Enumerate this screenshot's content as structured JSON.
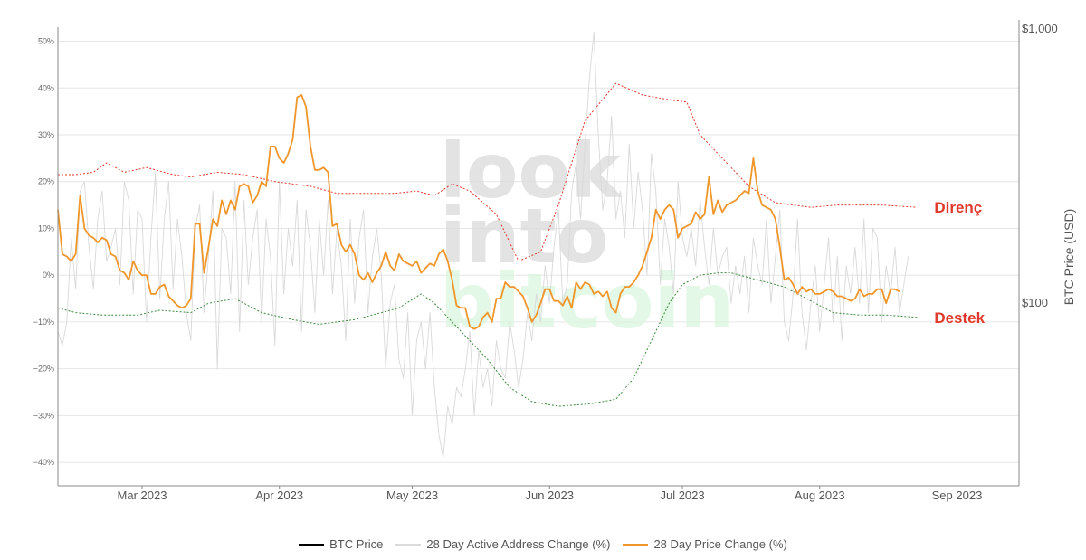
{
  "chart_data": {
    "type": "line",
    "title": "",
    "watermark": [
      "look",
      "into",
      "bitcoin"
    ],
    "x_axis": {
      "range": [
        "2023-02-10",
        "2023-09-15"
      ],
      "ticks": [
        {
          "date": "2023-03-01",
          "label": "Mar 2023"
        },
        {
          "date": "2023-04-01",
          "label": "Apr 2023"
        },
        {
          "date": "2023-05-01",
          "label": "May 2023"
        },
        {
          "date": "2023-06-01",
          "label": "Jun 2023"
        },
        {
          "date": "2023-07-01",
          "label": "Jul 2023"
        },
        {
          "date": "2023-08-01",
          "label": "Aug 2023"
        },
        {
          "date": "2023-09-01",
          "label": "Sep 2023"
        }
      ]
    },
    "y_left": {
      "range": [
        -45,
        53
      ],
      "ticks": [
        {
          "value": 50,
          "label": "50%"
        },
        {
          "value": 40,
          "label": "40%"
        },
        {
          "value": 30,
          "label": "30%"
        },
        {
          "value": 20,
          "label": "20%"
        },
        {
          "value": 10,
          "label": "10%"
        },
        {
          "value": 0,
          "label": "0%"
        },
        {
          "value": -10,
          "label": "−10%"
        },
        {
          "value": -20,
          "label": "−20%"
        },
        {
          "value": -30,
          "label": "−30%"
        },
        {
          "value": -40,
          "label": "−40%"
        }
      ],
      "grid": true
    },
    "y_right": {
      "scale": "log",
      "ylabel": "BTC Price (USD)",
      "ticks": [
        {
          "value": 1000,
          "label": "$1,000"
        },
        {
          "value": 100,
          "label": "$100"
        }
      ]
    },
    "legend": {
      "placement": "bottom-center",
      "entries": [
        {
          "name": "BTC Price",
          "color": "#000000"
        },
        {
          "name": "28 Day Active Address Change (%)",
          "color": "#dcdcdc"
        },
        {
          "name": "28 Day Price Change (%)",
          "color": "#f0962a"
        }
      ]
    },
    "annotations": [
      {
        "text": "Direnç",
        "color": "#e0392b",
        "anchor": {
          "date": "2023-08-24",
          "value": 14.5
        }
      },
      {
        "text": "Destek",
        "color": "#e0392b",
        "anchor": {
          "date": "2023-08-24",
          "value": -9
        }
      }
    ],
    "series": [
      {
        "name": "28 Day Price Change (%)",
        "color": "#f0962a",
        "style": "solid",
        "x_start": "2023-02-10",
        "step_days": 1,
        "values": [
          14,
          4.5,
          4,
          3,
          4.5,
          17,
          10,
          8.5,
          8,
          7,
          8,
          7.5,
          4.5,
          4,
          1,
          0.5,
          -1,
          3,
          1,
          0,
          0,
          -4,
          -4,
          -2.5,
          -2,
          -4.5,
          -5.5,
          -6.5,
          -7,
          -6.5,
          -5,
          11,
          11,
          0.5,
          6,
          12,
          10.5,
          16,
          13,
          16,
          14,
          19,
          19.5,
          19,
          15.5,
          17,
          20,
          19,
          27.5,
          27.5,
          25,
          24,
          26,
          29,
          38,
          38.5,
          36,
          27.5,
          22.5,
          22.5,
          23,
          22,
          10.5,
          11,
          6.5,
          5,
          6.5,
          4.5,
          0,
          -1,
          0.5,
          -1.5,
          0.5,
          2,
          5,
          2,
          1,
          4.5,
          3,
          2.5,
          2,
          3,
          0.5,
          1.5,
          2.5,
          2,
          4.5,
          5.5,
          3,
          -1,
          -6.5,
          -7,
          -7,
          -11,
          -11.5,
          -11,
          -9,
          -8,
          -10,
          -5,
          -5,
          -1.5,
          -2.5,
          -2.5,
          -3.5,
          -4.5,
          -7,
          -10,
          -8.5,
          -6,
          -3,
          -3,
          -5.5,
          -5.5,
          -6.5,
          -4.5,
          -7,
          -1.5,
          -3,
          -1.5,
          -2,
          -4,
          -3.5,
          -4.5,
          -3.5,
          -7,
          -8,
          -4,
          -2.5,
          -2.5,
          -1.5,
          0,
          2,
          5,
          8,
          14,
          12,
          14,
          15,
          14,
          8,
          10,
          10.5,
          11,
          13.5,
          12,
          13,
          21,
          13,
          16,
          13.5,
          15,
          15.5,
          16,
          17,
          18,
          17.5,
          25,
          18,
          15,
          14.5,
          14,
          12,
          6,
          -1,
          -0.5,
          -2,
          -4,
          -2.5,
          -3.5,
          -3,
          -4,
          -4,
          -3.5,
          -3,
          -3.5,
          -4.5,
          -4.5,
          -5,
          -5.5,
          -5,
          -3,
          -4.5,
          -4,
          -4,
          -3,
          -3,
          -6,
          -3,
          -3,
          -3.5
        ]
      },
      {
        "name": "28 Day Active Address Change (%)",
        "color": "#d9d9d9",
        "style": "solid",
        "x_start": "2023-02-10",
        "step_days": 1,
        "values": [
          -12,
          -15,
          -10,
          8,
          -3,
          18,
          20,
          6,
          -3,
          12,
          18,
          3,
          6,
          10,
          -2,
          20,
          16,
          -4,
          14,
          12,
          -10,
          8,
          22,
          -5,
          12,
          20,
          -3,
          12,
          4,
          -8,
          -14,
          10,
          15,
          -8,
          4,
          18,
          -20,
          10,
          8,
          -4,
          20,
          -12,
          16,
          -2,
          8,
          14,
          -10,
          12,
          4,
          -15,
          20,
          -4,
          10,
          2,
          16,
          -12,
          14,
          6,
          -8,
          12,
          0,
          16,
          -4,
          10,
          2,
          -14,
          12,
          -6,
          8,
          14,
          -8,
          4,
          10,
          0,
          -20,
          -6,
          -2,
          -18,
          -22,
          -8,
          -30,
          -14,
          -10,
          -20,
          -8,
          -24,
          -34,
          -39,
          -28,
          -32,
          -24,
          -26,
          -20,
          -12,
          -30,
          -16,
          -24,
          -20,
          -28,
          -14,
          -20,
          -22,
          -10,
          -16,
          -24,
          -18,
          -8,
          -14,
          -4,
          -10,
          2,
          -6,
          6,
          14,
          -6,
          -2,
          18,
          24,
          12,
          28,
          42,
          52,
          30,
          14,
          20,
          34,
          12,
          18,
          8,
          28,
          10,
          22,
          14,
          0,
          26,
          18,
          -2,
          12,
          6,
          -4,
          20,
          8,
          4,
          10,
          2,
          16,
          6,
          -2,
          10,
          0,
          4,
          6,
          -6,
          2,
          -4,
          4,
          -8,
          8,
          2,
          -2,
          12,
          -6,
          4,
          14,
          -10,
          -14,
          -4,
          12,
          -8,
          -16,
          -6,
          2,
          -12,
          -2,
          8,
          -10,
          4,
          -14,
          2,
          -4,
          6,
          -6,
          12,
          -8,
          10,
          8,
          -10,
          2,
          -4,
          6,
          -8,
          -2,
          4
        ]
      },
      {
        "name": "Direnç band",
        "color": "#e0392b",
        "style": "dotted",
        "points": [
          [
            "2023-02-10",
            21.5
          ],
          [
            "2023-02-14",
            21.5
          ],
          [
            "2023-02-18",
            22
          ],
          [
            "2023-02-21",
            24
          ],
          [
            "2023-02-25",
            22
          ],
          [
            "2023-03-02",
            23
          ],
          [
            "2023-03-08",
            21.5
          ],
          [
            "2023-03-12",
            21
          ],
          [
            "2023-03-18",
            22
          ],
          [
            "2023-03-24",
            21.5
          ],
          [
            "2023-03-31",
            20
          ],
          [
            "2023-04-08",
            19
          ],
          [
            "2023-04-14",
            17.5
          ],
          [
            "2023-04-20",
            17.5
          ],
          [
            "2023-04-27",
            17.5
          ],
          [
            "2023-05-02",
            18
          ],
          [
            "2023-05-06",
            17
          ],
          [
            "2023-05-10",
            19.5
          ],
          [
            "2023-05-14",
            18
          ],
          [
            "2023-05-20",
            13
          ],
          [
            "2023-05-25",
            3
          ],
          [
            "2023-05-30",
            5
          ],
          [
            "2023-06-03",
            15
          ],
          [
            "2023-06-09",
            33
          ],
          [
            "2023-06-16",
            41
          ],
          [
            "2023-06-22",
            38.5
          ],
          [
            "2023-06-28",
            37.5
          ],
          [
            "2023-07-02",
            37
          ],
          [
            "2023-07-05",
            30
          ],
          [
            "2023-07-10",
            25
          ],
          [
            "2023-07-16",
            19
          ],
          [
            "2023-07-22",
            15.5
          ],
          [
            "2023-07-30",
            14.5
          ],
          [
            "2023-08-05",
            15
          ],
          [
            "2023-08-15",
            15
          ],
          [
            "2023-08-23",
            14.5
          ]
        ]
      },
      {
        "name": "Destek band",
        "color": "#3b8a3b",
        "style": "dotted",
        "points": [
          [
            "2023-02-10",
            -7
          ],
          [
            "2023-02-14",
            -8
          ],
          [
            "2023-02-20",
            -8.5
          ],
          [
            "2023-02-28",
            -8.5
          ],
          [
            "2023-03-05",
            -7.5
          ],
          [
            "2023-03-12",
            -8
          ],
          [
            "2023-03-16",
            -6
          ],
          [
            "2023-03-22",
            -5
          ],
          [
            "2023-03-28",
            -8
          ],
          [
            "2023-04-04",
            -9.5
          ],
          [
            "2023-04-10",
            -10.5
          ],
          [
            "2023-04-18",
            -9.5
          ],
          [
            "2023-04-22",
            -8.5
          ],
          [
            "2023-04-28",
            -7
          ],
          [
            "2023-05-03",
            -4
          ],
          [
            "2023-05-06",
            -6
          ],
          [
            "2023-05-10",
            -10
          ],
          [
            "2023-05-14",
            -14
          ],
          [
            "2023-05-18",
            -18
          ],
          [
            "2023-05-23",
            -24
          ],
          [
            "2023-05-28",
            -27
          ],
          [
            "2023-06-03",
            -28
          ],
          [
            "2023-06-10",
            -27.5
          ],
          [
            "2023-06-16",
            -26.5
          ],
          [
            "2023-06-20",
            -22
          ],
          [
            "2023-06-24",
            -14
          ],
          [
            "2023-06-28",
            -6
          ],
          [
            "2023-07-01",
            -2
          ],
          [
            "2023-07-05",
            0
          ],
          [
            "2023-07-09",
            0.5
          ],
          [
            "2023-07-12",
            0.5
          ],
          [
            "2023-07-18",
            -1
          ],
          [
            "2023-07-24",
            -2.5
          ],
          [
            "2023-07-30",
            -5.5
          ],
          [
            "2023-08-04",
            -8
          ],
          [
            "2023-08-10",
            -8.5
          ],
          [
            "2023-08-16",
            -8.5
          ],
          [
            "2023-08-23",
            -9
          ]
        ]
      },
      {
        "name": "BTC Price",
        "color": "#000000",
        "style": "solid",
        "values": []
      }
    ]
  }
}
